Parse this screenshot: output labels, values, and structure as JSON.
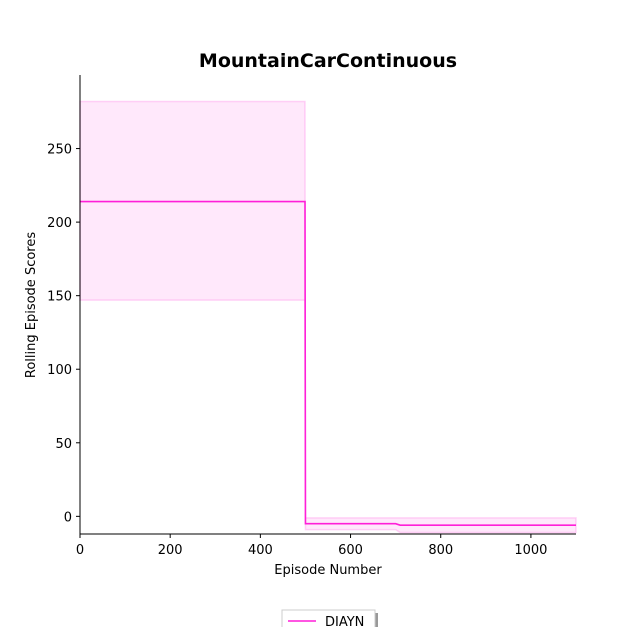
{
  "chart_data": {
    "type": "line",
    "title": "MountainCarContinuous",
    "xlabel": "Episode Number",
    "ylabel": "Rolling Episode Scores",
    "xlim": [
      0,
      1100
    ],
    "ylim": [
      -12,
      300
    ],
    "xticks": [
      0,
      200,
      400,
      600,
      800,
      1000
    ],
    "yticks": [
      0,
      50,
      100,
      150,
      200,
      250
    ],
    "grid": false,
    "legend_position": "bottom-center",
    "series": [
      {
        "name": "DIAYN",
        "color": "#ff1fd8",
        "x": [
          0,
          499,
          500,
          700,
          710,
          1100
        ],
        "y": [
          214,
          214,
          -5,
          -5,
          -6,
          -6
        ],
        "band_upper": [
          282,
          282,
          -1,
          -1,
          -1,
          -1
        ],
        "band_lower": [
          147,
          147,
          -9,
          -9,
          -11,
          -11
        ]
      }
    ]
  }
}
